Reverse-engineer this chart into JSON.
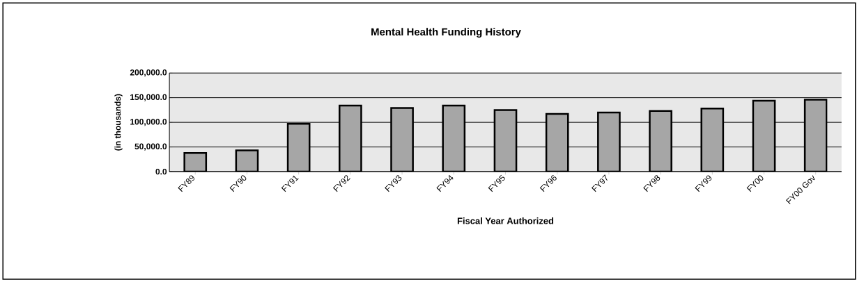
{
  "chart_data": {
    "type": "bar",
    "title": "Mental Health Funding History",
    "xlabel": "Fiscal Year Authorized",
    "ylabel": "(in thousands)",
    "categories": [
      "FY89",
      "FY90",
      "FY91",
      "FY92",
      "FY93",
      "FY94",
      "FY95",
      "FY96",
      "FY97",
      "FY98",
      "FY99",
      "FY00",
      "FY00 Gov"
    ],
    "values": [
      38000,
      43000,
      97000,
      134000,
      129000,
      134000,
      125000,
      117000,
      120000,
      123000,
      128000,
      144000,
      146000
    ],
    "color": "#a6a6a6",
    "ylim": [
      0,
      200000
    ],
    "yticks": [
      {
        "value": 0,
        "label": "0.0"
      },
      {
        "value": 50000,
        "label": "50,000.0"
      },
      {
        "value": 100000,
        "label": "100,000.0"
      },
      {
        "value": 150000,
        "label": "150,000.0"
      },
      {
        "value": 200000,
        "label": "200,000.0"
      }
    ],
    "grid": "y"
  }
}
